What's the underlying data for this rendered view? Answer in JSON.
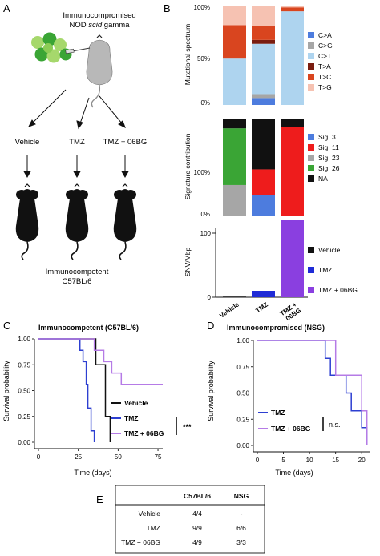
{
  "panel_letters": {
    "a": "A",
    "b": "B",
    "c": "C",
    "d": "D",
    "e": "E"
  },
  "panel_a": {
    "top_line1": "Immunocompromised",
    "top_line2_pre": "NOD ",
    "top_line2_italic": "scid",
    "top_line2_post": " gamma",
    "groups": [
      "Vehicle",
      "TMZ",
      "TMZ + 06BG"
    ],
    "bottom_line1": "Immunocompetent",
    "bottom_line2": "C57BL/6",
    "colors": {
      "green_dark": "#3aa535",
      "green_light": "#a6d86c",
      "mouse_gray": "#b8b8b8",
      "mouse_black": "#111111"
    }
  },
  "chart_data": [
    {
      "id": "mutational_spectrum",
      "type": "bar",
      "stacked": true,
      "ylabel": "Mutational spectrum",
      "yticks": [
        "0%",
        "50%",
        "100%"
      ],
      "ylim": [
        0,
        100
      ],
      "categories": [
        "Vehicle",
        "TMZ",
        "TMZ + 06BG"
      ],
      "series": [
        {
          "name": "C>A",
          "color": "#4d7cde",
          "values": [
            0,
            7,
            0
          ]
        },
        {
          "name": "C>G",
          "color": "#a6a6a6",
          "values": [
            0,
            4,
            0
          ]
        },
        {
          "name": "C>T",
          "color": "#aed4ef",
          "values": [
            47,
            51,
            95
          ]
        },
        {
          "name": "T>A",
          "color": "#7a1d10",
          "values": [
            0,
            4,
            0
          ]
        },
        {
          "name": "T>C",
          "color": "#d9451f",
          "values": [
            34,
            14,
            4
          ]
        },
        {
          "name": "T>G",
          "color": "#f6c2b2",
          "values": [
            19,
            20,
            1
          ]
        }
      ]
    },
    {
      "id": "signature_contribution",
      "type": "bar",
      "stacked": true,
      "ylabel": "Signature contribution",
      "yticks": [
        "0%",
        "100%"
      ],
      "ylim": [
        0,
        100
      ],
      "categories": [
        "Vehicle",
        "TMZ",
        "TMZ + 06BG"
      ],
      "series": [
        {
          "name": "Sig. 3",
          "color": "#4d7cde",
          "values": [
            0,
            22,
            0
          ]
        },
        {
          "name": "Sig. 11",
          "color": "#ee1c1c",
          "values": [
            0,
            26,
            91
          ]
        },
        {
          "name": "Sig. 23",
          "color": "#a6a6a6",
          "values": [
            32,
            0,
            0
          ]
        },
        {
          "name": "Sig. 26",
          "color": "#3aa535",
          "values": [
            58,
            0,
            0
          ]
        },
        {
          "name": "NA",
          "color": "#111111",
          "values": [
            10,
            52,
            9
          ]
        }
      ]
    },
    {
      "id": "snv_per_mbp",
      "type": "bar",
      "ylabel": "SNV/Mbp",
      "yticks": [
        "0",
        "100"
      ],
      "ylim": [
        0,
        120
      ],
      "categories": [
        "Vehicle",
        "TMZ",
        "TMZ +\n06BG"
      ],
      "values": [
        1,
        10,
        120
      ],
      "colors": [
        "#111111",
        "#1f2bd6",
        "#8a3fe0"
      ],
      "legend": [
        "Vehicle",
        "TMZ",
        "TMZ + 06BG"
      ]
    },
    {
      "id": "survival_c57bl6",
      "type": "line",
      "step": true,
      "title": "Immunocompetent (C57BL/6)",
      "xlabel": "Time (days)",
      "ylabel": "Survival probability",
      "xlim": [
        0,
        78
      ],
      "ylim": [
        0,
        1
      ],
      "xticks": [
        0,
        25,
        50,
        75
      ],
      "yticks": [
        "0.00",
        "0.25",
        "0.50",
        "0.75",
        "1.00"
      ],
      "series": [
        {
          "name": "Vehicle",
          "color": "#111111",
          "points": [
            [
              0,
              1
            ],
            [
              36,
              1
            ],
            [
              36,
              0.75
            ],
            [
              42,
              0.75
            ],
            [
              42,
              0.25
            ],
            [
              45,
              0.25
            ],
            [
              45,
              0
            ]
          ]
        },
        {
          "name": "TMZ",
          "color": "#2d3fd1",
          "points": [
            [
              0,
              1
            ],
            [
              26,
              1
            ],
            [
              26,
              0.89
            ],
            [
              28,
              0.89
            ],
            [
              28,
              0.78
            ],
            [
              30,
              0.78
            ],
            [
              30,
              0.56
            ],
            [
              31,
              0.56
            ],
            [
              31,
              0.33
            ],
            [
              33,
              0.33
            ],
            [
              33,
              0.11
            ],
            [
              35,
              0.11
            ],
            [
              35,
              0
            ]
          ]
        },
        {
          "name": "TMZ + 06BG",
          "color": "#b57be6",
          "points": [
            [
              0,
              1
            ],
            [
              35,
              1
            ],
            [
              35,
              0.89
            ],
            [
              41,
              0.89
            ],
            [
              41,
              0.78
            ],
            [
              46,
              0.78
            ],
            [
              46,
              0.67
            ],
            [
              52,
              0.67
            ],
            [
              52,
              0.56
            ],
            [
              78,
              0.56
            ]
          ]
        }
      ],
      "significance": "***"
    },
    {
      "id": "survival_nsg",
      "type": "line",
      "step": true,
      "title": "Immunocompromised (NSG)",
      "xlabel": "Time (days)",
      "ylabel": "Survival probability",
      "xlim": [
        0,
        21.5
      ],
      "ylim": [
        0,
        1
      ],
      "xticks": [
        0,
        5,
        10,
        15,
        20
      ],
      "yticks": [
        "0.00",
        "0.25",
        "0.50",
        "0.75",
        "1.00"
      ],
      "series": [
        {
          "name": "TMZ",
          "color": "#2d3fd1",
          "points": [
            [
              0,
              1
            ],
            [
              13,
              1
            ],
            [
              13,
              0.83
            ],
            [
              14,
              0.83
            ],
            [
              14,
              0.67
            ],
            [
              17,
              0.67
            ],
            [
              17,
              0.5
            ],
            [
              18,
              0.5
            ],
            [
              18,
              0.33
            ],
            [
              20,
              0.33
            ],
            [
              20,
              0.17
            ],
            [
              21,
              0.17
            ],
            [
              21,
              0
            ]
          ]
        },
        {
          "name": "TMZ + 06BG",
          "color": "#b57be6",
          "points": [
            [
              0,
              1
            ],
            [
              15,
              1
            ],
            [
              15,
              0.67
            ],
            [
              20,
              0.67
            ],
            [
              20,
              0.33
            ],
            [
              21,
              0.33
            ],
            [
              21,
              0
            ]
          ]
        }
      ],
      "significance": "n.s."
    }
  ],
  "table_e": {
    "headers": [
      "",
      "C57BL/6",
      "NSG"
    ],
    "rows": [
      [
        "Vehicle",
        "4/4",
        "-"
      ],
      [
        "TMZ",
        "9/9",
        "6/6"
      ],
      [
        "TMZ + 06BG",
        "4/9",
        "3/3"
      ]
    ]
  }
}
